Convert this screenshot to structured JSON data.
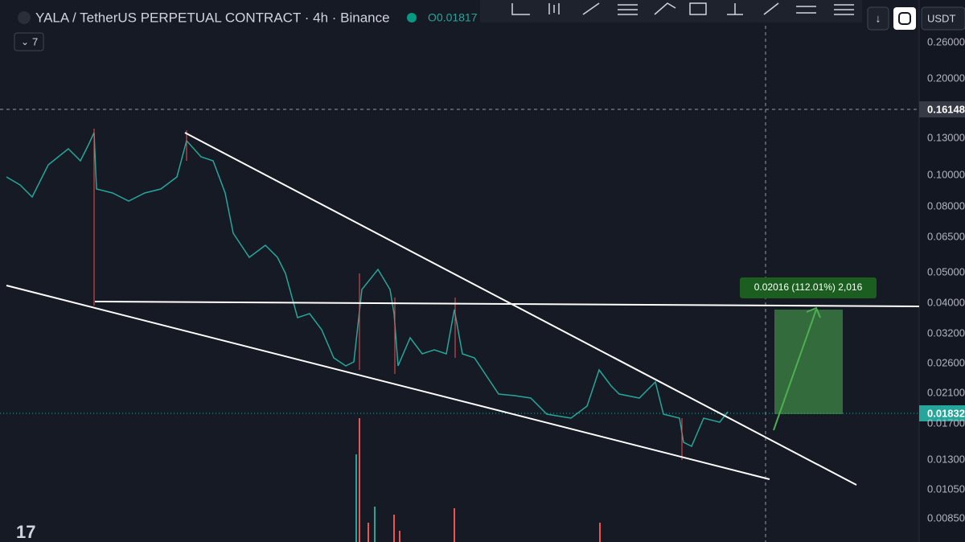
{
  "header": {
    "symbol": "YALA / TetherUS PERPETUAL CONTRACT · 4h · Binance",
    "ohlc": "O0.01817",
    "indicators_toggle": "7"
  },
  "toolbar": {
    "download": "↓",
    "currency": "USDT"
  },
  "price_axis": {
    "labels": [
      "0.26000",
      "0.20000",
      "0.13000",
      "0.10000",
      "0.08000",
      "0.06500",
      "0.05000",
      "0.04000",
      "0.03200",
      "0.02600",
      "0.02100",
      "0.01700",
      "0.01300",
      "0.01050",
      "0.00850"
    ],
    "crosshair_price": "0.16148",
    "last_price": "0.01832"
  },
  "measure": {
    "label": "0.02016 (112.01%) 2,016"
  }
}
